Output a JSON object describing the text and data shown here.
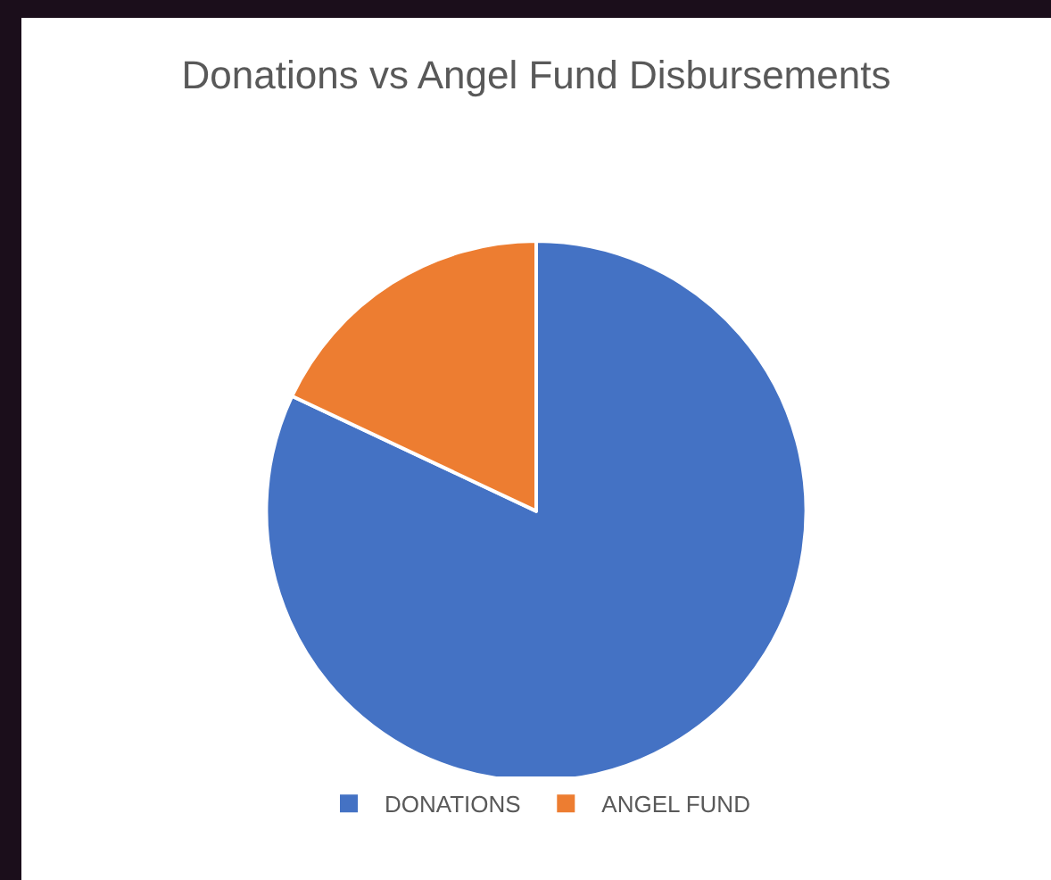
{
  "chart_data": {
    "type": "pie",
    "title": "Donations vs Angel Fund Disbursements",
    "categories": [
      "DONATIONS",
      "ANGEL FUND"
    ],
    "values": [
      82,
      18
    ],
    "colors": [
      "#4472c4",
      "#ed7d31"
    ],
    "legend": "bottom"
  }
}
